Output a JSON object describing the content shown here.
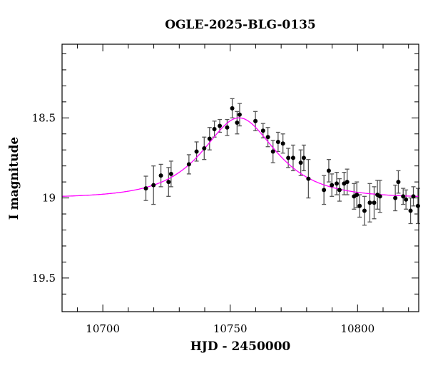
{
  "chart_data": {
    "type": "scatter",
    "title": "OGLE-2025-BLG-0135",
    "xlabel": "HJD - 2450000",
    "ylabel": "I magnitude",
    "xlim": [
      10684,
      10824
    ],
    "ylim": [
      19.71,
      18.04
    ],
    "y_inverted": true,
    "grid": false,
    "x_ticks": [
      10700,
      10750,
      10800
    ],
    "x_tick_labels": [
      "10700",
      "10750",
      "10800"
    ],
    "y_ticks": [
      18.5,
      19,
      19.5
    ],
    "y_tick_labels": [
      "18.5",
      "19",
      "19.5"
    ],
    "colors": {
      "points": "#000000",
      "errorbars": "#555555",
      "model": "#ff00ff"
    },
    "points": [
      {
        "x": 10716.9,
        "y": 18.94,
        "err": 0.076
      },
      {
        "x": 10719.9,
        "y": 18.92,
        "err": 0.12
      },
      {
        "x": 10722.8,
        "y": 18.86,
        "err": 0.07
      },
      {
        "x": 10725.8,
        "y": 18.9,
        "err": 0.09
      },
      {
        "x": 10726.8,
        "y": 18.85,
        "err": 0.08
      },
      {
        "x": 10733.8,
        "y": 18.79,
        "err": 0.06
      },
      {
        "x": 10736.8,
        "y": 18.71,
        "err": 0.06
      },
      {
        "x": 10739.8,
        "y": 18.69,
        "err": 0.07
      },
      {
        "x": 10741.9,
        "y": 18.63,
        "err": 0.07
      },
      {
        "x": 10743.8,
        "y": 18.57,
        "err": 0.05
      },
      {
        "x": 10745.9,
        "y": 18.55,
        "err": 0.04
      },
      {
        "x": 10748.8,
        "y": 18.56,
        "err": 0.05
      },
      {
        "x": 10750.8,
        "y": 18.44,
        "err": 0.06
      },
      {
        "x": 10752.7,
        "y": 18.53,
        "err": 0.07
      },
      {
        "x": 10753.7,
        "y": 18.48,
        "err": 0.07
      },
      {
        "x": 10759.9,
        "y": 18.52,
        "err": 0.06
      },
      {
        "x": 10762.9,
        "y": 18.58,
        "err": 0.045
      },
      {
        "x": 10764.8,
        "y": 18.62,
        "err": 0.06
      },
      {
        "x": 10766.8,
        "y": 18.71,
        "err": 0.07
      },
      {
        "x": 10768.8,
        "y": 18.65,
        "err": 0.06
      },
      {
        "x": 10770.7,
        "y": 18.66,
        "err": 0.06
      },
      {
        "x": 10772.8,
        "y": 18.75,
        "err": 0.06
      },
      {
        "x": 10774.7,
        "y": 18.75,
        "err": 0.08
      },
      {
        "x": 10777.7,
        "y": 18.78,
        "err": 0.08
      },
      {
        "x": 10778.9,
        "y": 18.75,
        "err": 0.08
      },
      {
        "x": 10780.7,
        "y": 18.88,
        "err": 0.12
      },
      {
        "x": 10786.8,
        "y": 18.95,
        "err": 0.09
      },
      {
        "x": 10788.7,
        "y": 18.83,
        "err": 0.07
      },
      {
        "x": 10789.9,
        "y": 18.92,
        "err": 0.07
      },
      {
        "x": 10791.8,
        "y": 18.91,
        "err": 0.07
      },
      {
        "x": 10792.9,
        "y": 18.95,
        "err": 0.07
      },
      {
        "x": 10794.7,
        "y": 18.91,
        "err": 0.07
      },
      {
        "x": 10795.9,
        "y": 18.9,
        "err": 0.08
      },
      {
        "x": 10798.6,
        "y": 18.99,
        "err": 0.08
      },
      {
        "x": 10799.7,
        "y": 18.98,
        "err": 0.08
      },
      {
        "x": 10800.8,
        "y": 19.05,
        "err": 0.07
      },
      {
        "x": 10802.7,
        "y": 19.08,
        "err": 0.09
      },
      {
        "x": 10804.8,
        "y": 19.03,
        "err": 0.12
      },
      {
        "x": 10806.5,
        "y": 19.03,
        "err": 0.1
      },
      {
        "x": 10807.8,
        "y": 18.98,
        "err": 0.09
      },
      {
        "x": 10808.8,
        "y": 18.99,
        "err": 0.1
      },
      {
        "x": 10814.8,
        "y": 19.0,
        "err": 0.08
      },
      {
        "x": 10816.0,
        "y": 18.9,
        "err": 0.07
      },
      {
        "x": 10817.9,
        "y": 18.99,
        "err": 0.05
      },
      {
        "x": 10819.0,
        "y": 19.01,
        "err": 0.06
      },
      {
        "x": 10820.8,
        "y": 19.08,
        "err": 0.08
      },
      {
        "x": 10821.9,
        "y": 18.99,
        "err": 0.06
      },
      {
        "x": 10823.7,
        "y": 19.05,
        "err": 0.11
      }
    ],
    "model": {
      "type": "point-lens",
      "t0": 10753.5,
      "u0": 0.76,
      "tE": 20,
      "baseline": 19.0
    }
  }
}
